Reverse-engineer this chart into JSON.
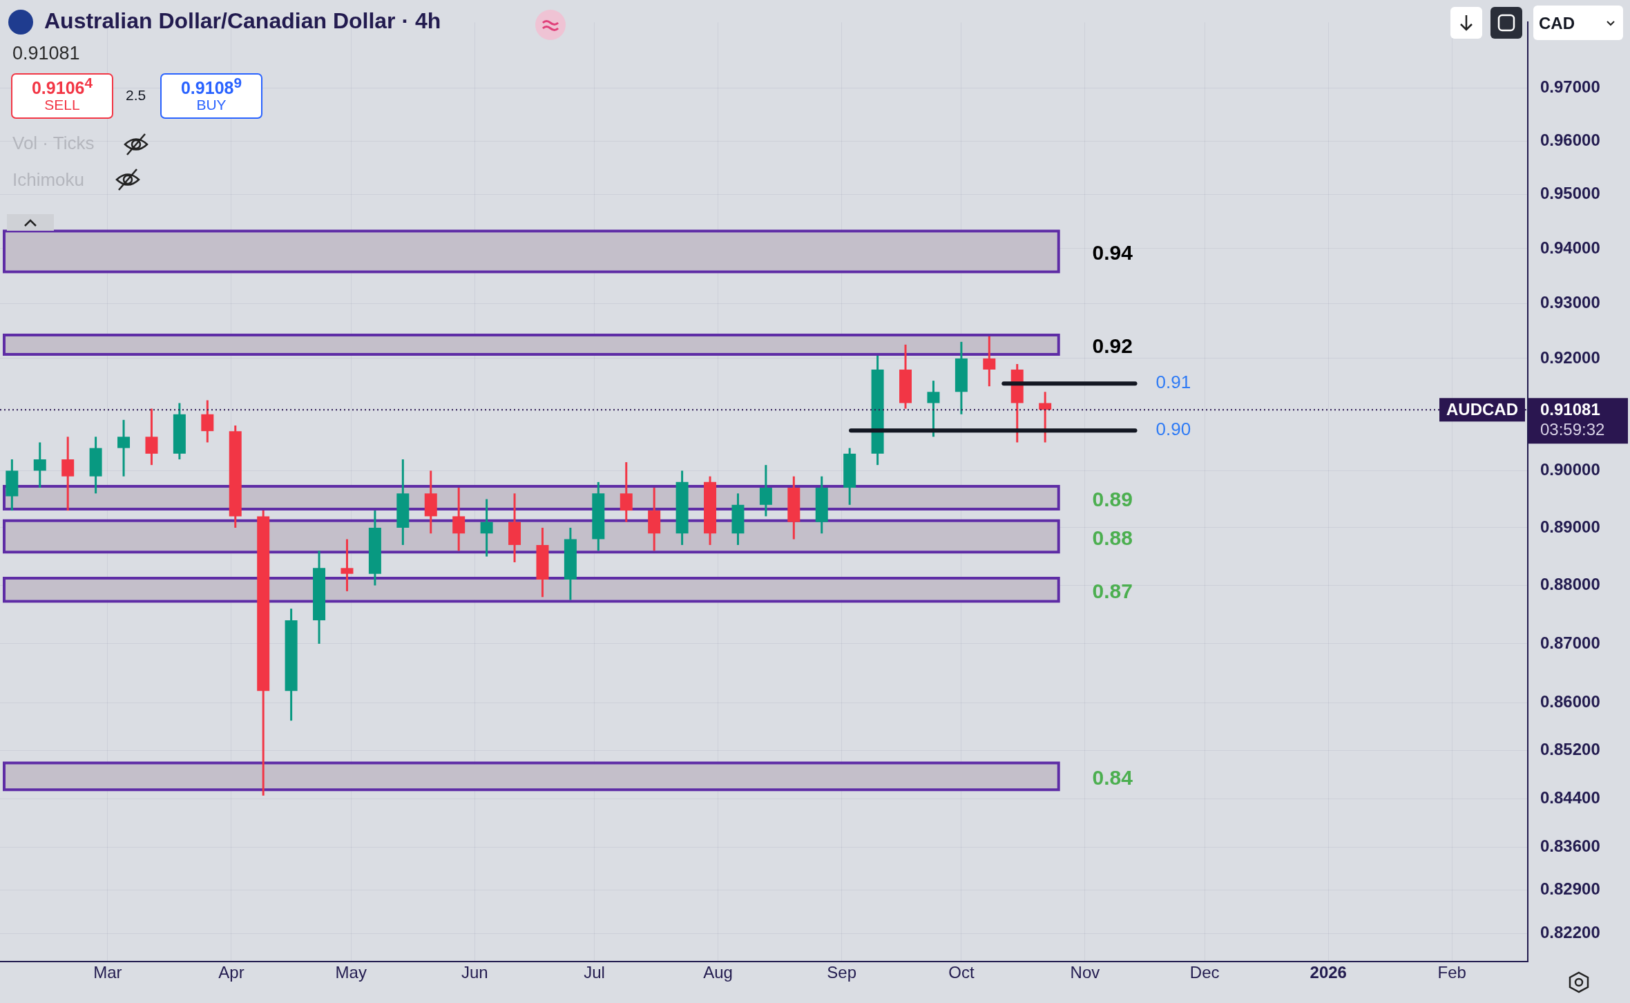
{
  "chart_data": {
    "type": "candlestick",
    "title": "Australian Dollar/Canadian Dollar · 4h",
    "x": [
      "2025-02-05",
      "2025-02-12",
      "2025-02-19",
      "2025-02-26",
      "2025-03-05",
      "2025-03-12",
      "2025-03-19",
      "2025-03-26",
      "2025-04-02",
      "2025-04-09",
      "2025-04-16",
      "2025-04-23",
      "2025-04-30",
      "2025-05-07",
      "2025-05-14",
      "2025-05-21",
      "2025-05-28",
      "2025-06-04",
      "2025-06-11",
      "2025-06-18",
      "2025-06-25",
      "2025-07-02",
      "2025-07-09",
      "2025-07-16",
      "2025-07-23",
      "2025-07-30",
      "2025-08-06",
      "2025-08-13",
      "2025-08-20",
      "2025-08-27",
      "2025-09-03",
      "2025-09-10",
      "2025-09-17",
      "2025-09-24",
      "2025-10-01",
      "2025-10-08",
      "2025-10-15",
      "2025-10-22"
    ],
    "ohlc": [
      [
        0.8955,
        0.902,
        0.893,
        0.9
      ],
      [
        0.9,
        0.905,
        0.897,
        0.902
      ],
      [
        0.902,
        0.906,
        0.893,
        0.899
      ],
      [
        0.899,
        0.906,
        0.896,
        0.904
      ],
      [
        0.904,
        0.909,
        0.899,
        0.906
      ],
      [
        0.906,
        0.911,
        0.901,
        0.903
      ],
      [
        0.903,
        0.912,
        0.902,
        0.91
      ],
      [
        0.91,
        0.9125,
        0.905,
        0.907
      ],
      [
        0.907,
        0.908,
        0.89,
        0.892
      ],
      [
        0.892,
        0.893,
        0.8445,
        0.862
      ],
      [
        0.862,
        0.876,
        0.857,
        0.874
      ],
      [
        0.874,
        0.886,
        0.87,
        0.883
      ],
      [
        0.883,
        0.888,
        0.879,
        0.882
      ],
      [
        0.882,
        0.893,
        0.88,
        0.89
      ],
      [
        0.89,
        0.902,
        0.887,
        0.896
      ],
      [
        0.896,
        0.9,
        0.889,
        0.892
      ],
      [
        0.892,
        0.897,
        0.886,
        0.889
      ],
      [
        0.889,
        0.895,
        0.885,
        0.891
      ],
      [
        0.891,
        0.896,
        0.884,
        0.887
      ],
      [
        0.887,
        0.89,
        0.878,
        0.881
      ],
      [
        0.881,
        0.89,
        0.8775,
        0.888
      ],
      [
        0.888,
        0.898,
        0.886,
        0.896
      ],
      [
        0.896,
        0.9015,
        0.891,
        0.893
      ],
      [
        0.893,
        0.897,
        0.886,
        0.889
      ],
      [
        0.889,
        0.9,
        0.887,
        0.898
      ],
      [
        0.898,
        0.899,
        0.887,
        0.889
      ],
      [
        0.889,
        0.896,
        0.887,
        0.894
      ],
      [
        0.894,
        0.901,
        0.892,
        0.897
      ],
      [
        0.897,
        0.899,
        0.888,
        0.891
      ],
      [
        0.891,
        0.899,
        0.889,
        0.897
      ],
      [
        0.897,
        0.904,
        0.894,
        0.903
      ],
      [
        0.903,
        0.9205,
        0.901,
        0.918
      ],
      [
        0.918,
        0.9225,
        0.911,
        0.912
      ],
      [
        0.912,
        0.916,
        0.906,
        0.914
      ],
      [
        0.914,
        0.923,
        0.91,
        0.92
      ],
      [
        0.92,
        0.924,
        0.915,
        0.918
      ],
      [
        0.918,
        0.919,
        0.905,
        0.912
      ],
      [
        0.912,
        0.914,
        0.905,
        0.9108
      ]
    ],
    "xlim": [
      "2025-02-02",
      "2026-02-20"
    ],
    "xticks": [
      {
        "value": "2025-03-01",
        "label": "Mar"
      },
      {
        "value": "2025-04-01",
        "label": "Apr"
      },
      {
        "value": "2025-05-01",
        "label": "May"
      },
      {
        "value": "2025-06-01",
        "label": "Jun"
      },
      {
        "value": "2025-07-01",
        "label": "Jul"
      },
      {
        "value": "2025-08-01",
        "label": "Aug"
      },
      {
        "value": "2025-09-01",
        "label": "Sep"
      },
      {
        "value": "2025-10-01",
        "label": "Oct"
      },
      {
        "value": "2025-11-01",
        "label": "Nov"
      },
      {
        "value": "2025-12-01",
        "label": "Dec"
      },
      {
        "value": "2026-01-01",
        "label": "2026"
      },
      {
        "value": "2026-02-01",
        "label": "Feb"
      }
    ],
    "log": true,
    "ylim": [
      0.8175,
      0.9826
    ],
    "yticks": [
      {
        "value": 0.822,
        "label": "0.82200"
      },
      {
        "value": 0.829,
        "label": "0.82900"
      },
      {
        "value": 0.836,
        "label": "0.83600"
      },
      {
        "value": 0.844,
        "label": "0.84400"
      },
      {
        "value": 0.852,
        "label": "0.85200"
      },
      {
        "value": 0.86,
        "label": "0.86000"
      },
      {
        "value": 0.87,
        "label": "0.87000"
      },
      {
        "value": 0.88,
        "label": "0.88000"
      },
      {
        "value": 0.89,
        "label": "0.89000"
      },
      {
        "value": 0.9,
        "label": "0.90000"
      },
      {
        "value": 0.92,
        "label": "0.92000"
      },
      {
        "value": 0.93,
        "label": "0.93000"
      },
      {
        "value": 0.94,
        "label": "0.94000"
      },
      {
        "value": 0.95,
        "label": "0.95000"
      },
      {
        "value": 0.96,
        "label": "0.96000"
      },
      {
        "value": 0.97,
        "label": "0.97000"
      }
    ],
    "grid": true,
    "bands": [
      {
        "axis": "y",
        "from": 0.936,
        "to": 0.943,
        "label": "0.94",
        "color": "#c4bfca"
      },
      {
        "axis": "y",
        "from": 0.921,
        "to": 0.924,
        "label": "0.92",
        "color": "#c4bfca"
      },
      {
        "axis": "y",
        "from": 0.8935,
        "to": 0.897,
        "label": "0.89",
        "color": "#c4bfca"
      },
      {
        "axis": "y",
        "from": 0.886,
        "to": 0.891,
        "label": "0.88",
        "color": "#c4bfca"
      },
      {
        "axis": "y",
        "from": 0.8775,
        "to": 0.881,
        "label": "0.87",
        "color": "#c4bfca"
      },
      {
        "axis": "y",
        "from": 0.8457,
        "to": 0.8497,
        "label": "0.84",
        "color": "#c4bfca"
      }
    ],
    "ref_lines": [
      {
        "axis": "y",
        "value": 0.9155,
        "color": "#131722"
      },
      {
        "axis": "y",
        "value": 0.9071,
        "color": "#131722"
      },
      {
        "axis": "y",
        "value": 0.91081,
        "label": "AUDCAD",
        "color": "#2a1650",
        "line_style": "dotted"
      }
    ],
    "annotations": [
      "0.91081",
      "0.9106$^{4}$",
      "SELL",
      "2.5",
      "0.9108$^{9}$",
      "BUY",
      "Vol · Ticks",
      "Ichimoku",
      "CAD",
      "03:59:32",
      "0.91",
      "0.90"
    ]
  }
}
